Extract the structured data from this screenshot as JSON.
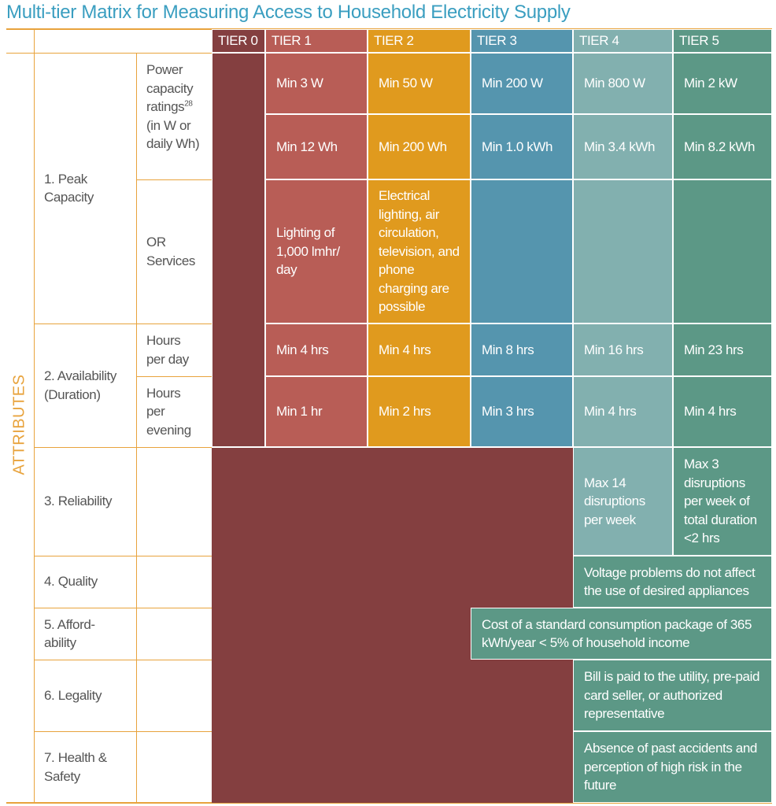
{
  "title": "Multi-tier Matrix for Measuring Access to Household Electricity Supply",
  "side_label": "ATTRIBUTES",
  "tiers": [
    "TIER 0",
    "TIER 1",
    "TIER 2",
    "TIER 3",
    "TIER 4",
    "TIER 5"
  ],
  "colors": {
    "tier0": "#843f40",
    "tier1": "#b85d56",
    "tier2": "#e09a1e",
    "tier3": "#5595ae",
    "tier4": "#82b0af",
    "tier5": "#5c9886",
    "rule": "#e8a33d",
    "title": "#3a9ec0"
  },
  "attributes": {
    "peak": {
      "label": "1. Peak Capacity",
      "sub1": "Power capacity ratings",
      "sub1_sup": "28",
      "sub1_tail": "(in W or daily Wh)",
      "sub2": "OR Services",
      "watts": [
        "Min 3 W",
        "Min 50 W",
        "Min 200 W",
        "Min 800 W",
        "Min 2 kW"
      ],
      "wh": [
        "Min 12 Wh",
        "Min 200 Wh",
        "Min 1.0 kWh",
        "Min 3.4 kWh",
        "Min 8.2 kWh"
      ],
      "services": [
        "Lighting of 1,000 lmhr/ day",
        "Electrical lighting, air circulation, television, and phone charging are possible"
      ]
    },
    "availability": {
      "label": "2. Availability (Duration)",
      "sub1": "Hours per day",
      "sub2": "Hours per evening",
      "day": [
        "Min 4 hrs",
        "Min 4 hrs",
        "Min 8 hrs",
        "Min 16 hrs",
        "Min 23 hrs"
      ],
      "evening": [
        "Min 1 hr",
        "Min 2 hrs",
        "Min 3 hrs",
        "Min 4 hrs",
        "Min 4 hrs"
      ]
    },
    "reliability": {
      "label": "3. Reliability",
      "tier4": "Max 14 disruptions per week",
      "tier5": "Max 3 disruptions per week of total duration <2 hrs"
    },
    "quality": {
      "label": "4. Quality",
      "text": "Voltage problems do not affect the use of desired appliances"
    },
    "affordability": {
      "label": "5. Afford- ability",
      "text": "Cost of a standard consumption package of 365 kWh/year < 5% of household income"
    },
    "legality": {
      "label": "6. Legality",
      "text": "Bill is paid to the utility, pre-paid card seller, or authorized representative"
    },
    "health": {
      "label": "7. Health & Safety",
      "text": "Absence of past accidents and perception of high risk in the future"
    }
  }
}
